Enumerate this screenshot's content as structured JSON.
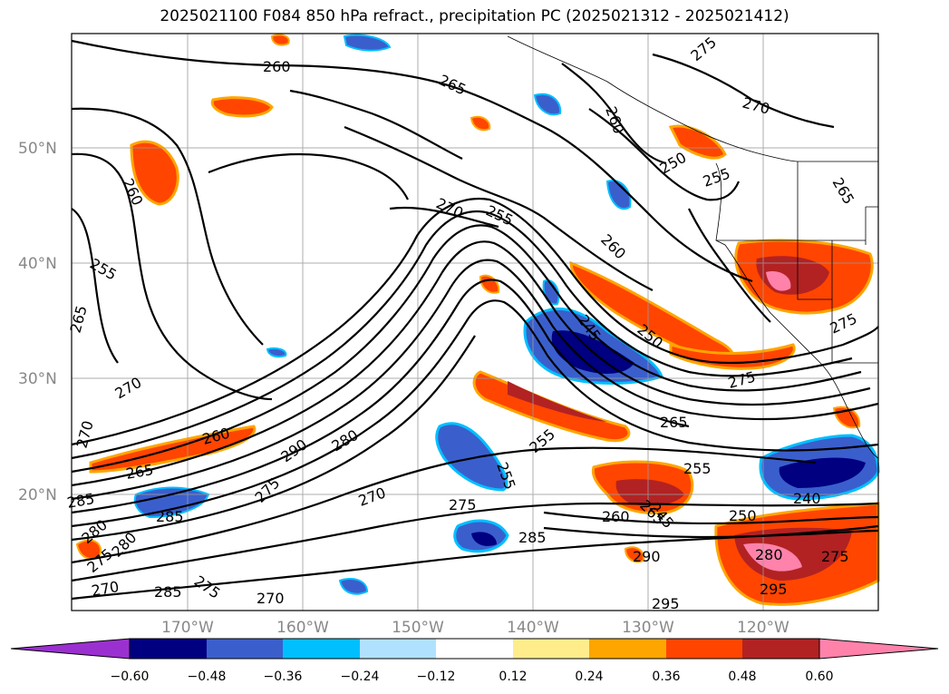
{
  "title": "2025021100 F084 850 hPa refract., precipitation PC (2025021312 - 2025021412)",
  "lat_labels": [
    "50°N",
    "40°N",
    "30°N",
    "20°N"
  ],
  "lon_labels": [
    "170°W",
    "160°W",
    "150°W",
    "140°W",
    "130°W",
    "120°W"
  ],
  "colorbar": {
    "tick_labels": [
      "−0.60",
      "−0.48",
      "−0.36",
      "−0.24",
      "−0.12",
      "0.12",
      "0.24",
      "0.36",
      "0.48",
      "0.60"
    ],
    "colors": [
      "#9b30d0",
      "#000080",
      "#3a5fcd",
      "#00bfff",
      "#b0e2ff",
      "#ffffff",
      "#ffec8b",
      "#ffa500",
      "#ff4500",
      "#b22222",
      "#ff82ab"
    ]
  },
  "contour_labels": [
    "260",
    "265",
    "275",
    "270",
    "260",
    "250",
    "265",
    "260",
    "255",
    "265",
    "255",
    "270",
    "255",
    "260",
    "245",
    "250",
    "275",
    "270",
    "265",
    "275",
    "255",
    "260",
    "270",
    "290",
    "280",
    "265",
    "275",
    "270",
    "255",
    "275",
    "265",
    "255",
    "240",
    "245",
    "260",
    "250",
    "285",
    "290",
    "280",
    "275",
    "295",
    "295",
    "285",
    "280",
    "270",
    "285",
    "275",
    "270",
    "285",
    "275",
    "280"
  ]
}
